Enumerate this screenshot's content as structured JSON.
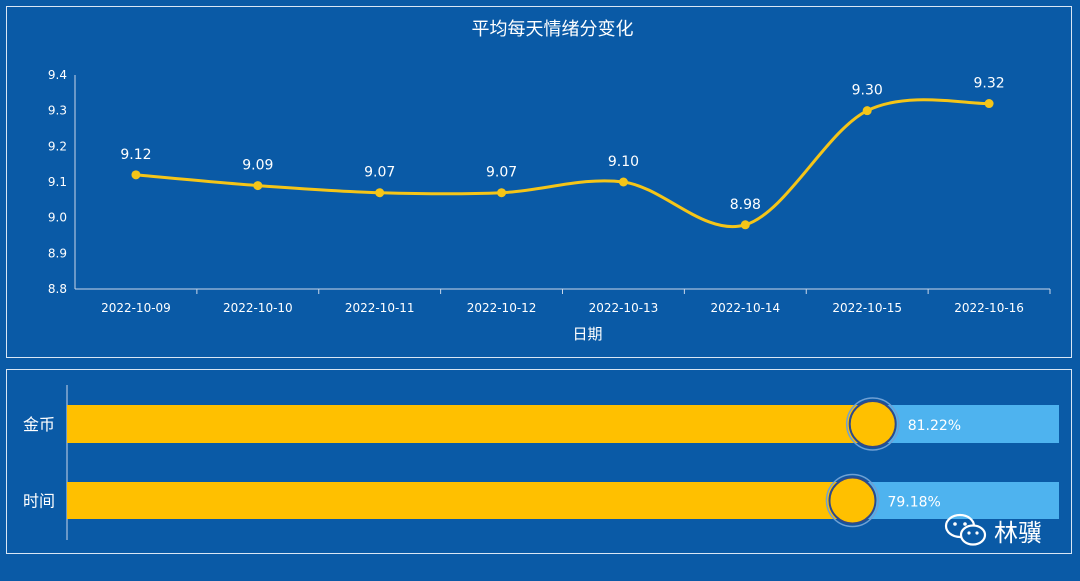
{
  "chart_data": [
    {
      "type": "line",
      "title": "平均每天情绪分变化",
      "xlabel": "日期",
      "ylabel": "",
      "categories": [
        "2022-10-09",
        "2022-10-10",
        "2022-10-11",
        "2022-10-12",
        "2022-10-13",
        "2022-10-14",
        "2022-10-15",
        "2022-10-16"
      ],
      "series": [
        {
          "values": [
            9.12,
            9.09,
            9.07,
            9.07,
            9.1,
            8.98,
            9.3,
            9.32
          ],
          "labels": [
            "9.12",
            "9.09",
            "9.07",
            "9.07",
            "9.10",
            "8.98",
            "9.30",
            "9.32"
          ]
        }
      ],
      "ylim": [
        8.8,
        9.4
      ],
      "yticks": [
        "8.8",
        "8.9",
        "9.0",
        "9.1",
        "9.2",
        "9.3",
        "9.4"
      ],
      "grid": false,
      "colors": {
        "line": "#f5c518",
        "point": "#f5c518"
      }
    },
    {
      "type": "bar",
      "orientation": "horizontal",
      "categories": [
        "金币",
        "时间"
      ],
      "values": [
        81.22,
        79.18
      ],
      "labels": [
        "81.22%",
        "79.18%"
      ],
      "xlim": [
        0,
        100
      ],
      "colors": {
        "fill": "#ffc000",
        "track": "#4eb3ef",
        "marker": "#ffc000",
        "marker_ring": "#2f4a8a"
      }
    }
  ],
  "watermark": {
    "text": "林骥",
    "icon": "wechat-icon"
  }
}
